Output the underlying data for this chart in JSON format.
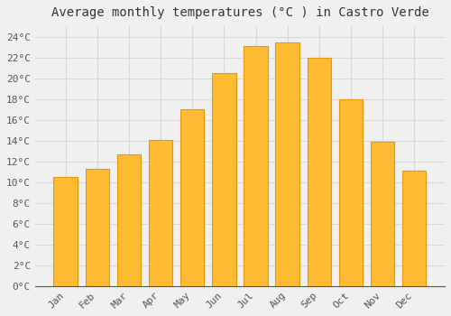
{
  "months": [
    "Jan",
    "Feb",
    "Mar",
    "Apr",
    "May",
    "Jun",
    "Jul",
    "Aug",
    "Sep",
    "Oct",
    "Nov",
    "Dec"
  ],
  "temperatures": [
    10.5,
    11.3,
    12.7,
    14.1,
    17.0,
    20.5,
    23.1,
    23.4,
    22.0,
    18.0,
    13.9,
    11.1
  ],
  "bar_color": "#FFBB33",
  "bar_edge_color": "#E8960A",
  "bar_edge_width": 0.8,
  "title": "Average monthly temperatures (°C ) in Castro Verde",
  "ylim": [
    0,
    25
  ],
  "ytick_step": 2,
  "background_color": "#f0f0f0",
  "plot_bg_color": "#f0f0f0",
  "grid_color": "#d8d8d8",
  "title_fontsize": 10,
  "tick_fontsize": 8,
  "tick_color": "#555555",
  "title_color": "#333333",
  "font_family": "monospace",
  "bar_width": 0.75,
  "figsize": [
    5.0,
    3.5
  ],
  "dpi": 100
}
